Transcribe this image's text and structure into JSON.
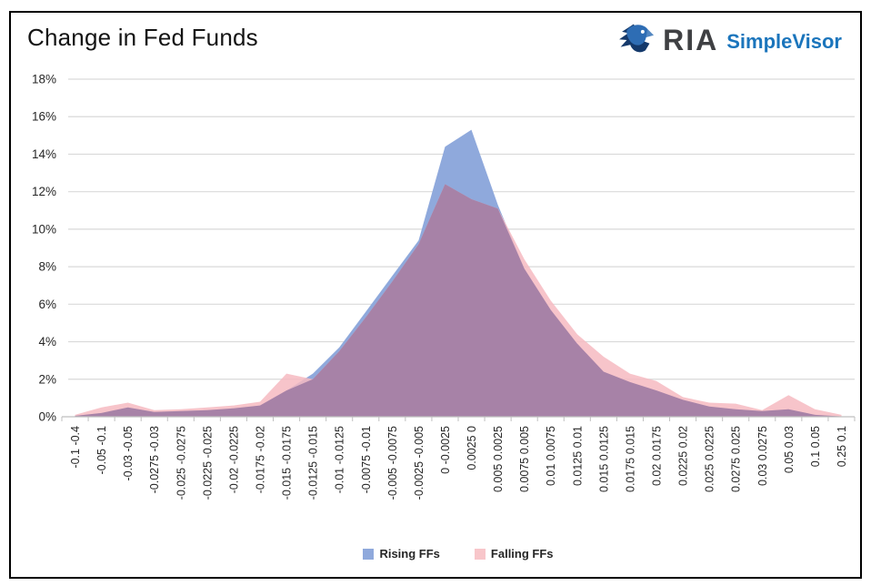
{
  "title": "Change in Fed Funds",
  "logo": {
    "brand": "RIA",
    "product": "SimpleVisor",
    "brand_color": "#3F4043",
    "product_color": "#1B75BC",
    "eagle_dark": "#14396B",
    "eagle_mid": "#2E6DB4"
  },
  "legend": [
    {
      "label": "Rising FFs",
      "swatch_color": "#8FA9DC"
    },
    {
      "label": "Falling FFs",
      "swatch_color": "#F8C6CA"
    }
  ],
  "chart_data": {
    "type": "area",
    "title": "Change in Fed Funds",
    "categories": [
      "-0.1 -0.4",
      "-0.05 -0.1",
      "-0.03 -0.05",
      "-0.0275 -0.03",
      "-0.025 -0.0275",
      "-0.0225 -0.025",
      "-0.02 -0.0225",
      "-0.0175 -0.02",
      "-0.015 -0.0175",
      "-0.0125 -0.015",
      "-0.01 -0.0125",
      "-0.0075 -0.01",
      "-0.005 -0.0075",
      "-0.0025 -0.005",
      "0 -0.0025",
      "0.0025 0",
      "0.005 0.0025",
      "0.0075 0.005",
      "0.01 0.0075",
      "0.0125 0.01",
      "0.015 0.0125",
      "0.0175 0.015",
      "0.02 0.0175",
      "0.0225 0.02",
      "0.025 0.0225",
      "0.0275 0.025",
      "0.03 0.0275",
      "0.05 0.03",
      "0.1 0.05",
      "0.25 0.1"
    ],
    "series": [
      {
        "name": "Rising FFs",
        "fill": "#8FA9DC",
        "values": [
          0.05,
          0.2,
          0.5,
          0.25,
          0.3,
          0.35,
          0.45,
          0.6,
          1.4,
          2.3,
          3.7,
          5.6,
          7.5,
          9.4,
          14.4,
          15.3,
          11.3,
          7.9,
          5.7,
          3.9,
          2.4,
          1.85,
          1.4,
          0.9,
          0.55,
          0.4,
          0.3,
          0.4,
          0.1,
          0.02
        ]
      },
      {
        "name": "Falling FFs",
        "fill": "rgba(246,186,193,0.85)",
        "values": [
          0.1,
          0.5,
          0.75,
          0.35,
          0.4,
          0.5,
          0.6,
          0.8,
          2.3,
          2.0,
          3.5,
          5.3,
          7.2,
          9.2,
          12.4,
          11.6,
          11.1,
          8.4,
          6.2,
          4.4,
          3.2,
          2.3,
          1.9,
          1.05,
          0.75,
          0.7,
          0.35,
          1.15,
          0.4,
          0.1
        ]
      }
    ],
    "overlap_color": "#A782A7",
    "y_ticks": [
      "0%",
      "2%",
      "4%",
      "6%",
      "8%",
      "10%",
      "12%",
      "14%",
      "16%",
      "18%"
    ],
    "ylim": [
      0,
      18
    ],
    "xlabel": "",
    "ylabel": "",
    "grid": true,
    "gridline_color": "#D9D9D9",
    "axis_color": "#BFBFBF",
    "tick_label_color": "#262626",
    "legend_position": "bottom"
  }
}
